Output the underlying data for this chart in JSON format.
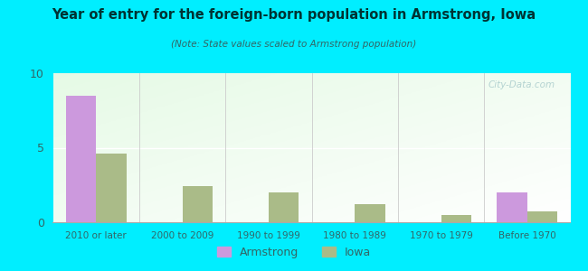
{
  "title": "Year of entry for the foreign-born population in Armstrong, Iowa",
  "subtitle": "(Note: State values scaled to Armstrong population)",
  "categories": [
    "2010 or later",
    "2000 to 2009",
    "1990 to 1999",
    "1980 to 1989",
    "1970 to 1979",
    "Before 1970"
  ],
  "armstrong_values": [
    8.5,
    0,
    0,
    0,
    0,
    2.0
  ],
  "iowa_values": [
    4.6,
    2.4,
    2.0,
    1.2,
    0.5,
    0.7
  ],
  "armstrong_color": "#cc99dd",
  "iowa_color": "#aabb88",
  "background_color": "#00eeff",
  "plot_bg_top": "#ffffff",
  "plot_bg_bottom": "#ddeedd",
  "ylim": [
    0,
    10
  ],
  "yticks": [
    0,
    5,
    10
  ],
  "bar_width": 0.35,
  "watermark": "City-Data.com",
  "legend_labels": [
    "Armstrong",
    "Iowa"
  ],
  "title_color": "#003333",
  "subtitle_color": "#336666",
  "tick_label_color": "#336666",
  "ytick_label_color": "#336666"
}
